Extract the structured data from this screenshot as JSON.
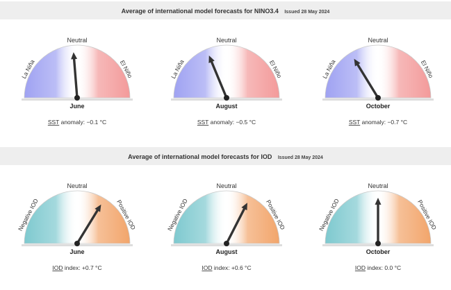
{
  "colors": {
    "header_bg": "#eeeeee",
    "la_nina": "#9fa2f2",
    "el_nino": "#f39a9a",
    "negative_iod": "#7ec9cf",
    "positive_iod": "#f2a56b",
    "needle": "#333333"
  },
  "sections": [
    {
      "title": "Average of international model forecasts for NINO3.4",
      "issued": "Issued 28 May 2024",
      "left_label": "La Niña",
      "right_label": "El Niño",
      "top_label": "Neutral",
      "metric_prefix": "SST",
      "metric_suffix": "anomaly:",
      "gauges": [
        {
          "month": "June",
          "value_text": "−0.1 °C"
        },
        {
          "month": "August",
          "value_text": "−0.5 °C"
        },
        {
          "month": "October",
          "value_text": "−0.7 °C"
        }
      ]
    },
    {
      "title": "Average of international model forecasts for IOD",
      "issued": "Issued 28 May 2024",
      "left_label": "Negative IOD",
      "right_label": "Positive IOD",
      "top_label": "Neutral",
      "metric_prefix": "IOD",
      "metric_suffix": "index:",
      "gauges": [
        {
          "month": "June",
          "value_text": "+0.7 °C"
        },
        {
          "month": "August",
          "value_text": "+0.6 °C"
        },
        {
          "month": "October",
          "value_text": "0.0 °C"
        }
      ]
    }
  ],
  "chart_data": [
    {
      "type": "gauge",
      "title": "Average of international model forecasts for NINO3.4",
      "categories": [
        "June",
        "August",
        "October"
      ],
      "values": [
        -0.1,
        -0.5,
        -0.7
      ],
      "unit": "°C",
      "regions": [
        "La Niña",
        "Neutral",
        "El Niño"
      ]
    },
    {
      "type": "gauge",
      "title": "Average of international model forecasts for IOD",
      "categories": [
        "June",
        "August",
        "October"
      ],
      "values": [
        0.7,
        0.6,
        0.0
      ],
      "unit": "°C",
      "regions": [
        "Negative IOD",
        "Neutral",
        "Positive IOD"
      ]
    }
  ]
}
